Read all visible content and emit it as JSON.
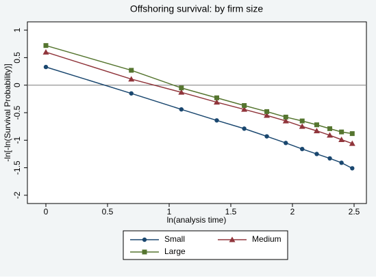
{
  "chart_data": {
    "type": "line",
    "title": "Offshoring survival: by firm size",
    "x_label": "ln(analysis time)",
    "y_label": "-ln[-ln(Survival Probability)]",
    "x": [
      0,
      0.693,
      1.099,
      1.386,
      1.609,
      1.792,
      1.946,
      2.079,
      2.197,
      2.303,
      2.398,
      2.485
    ],
    "series": [
      {
        "name": "Small",
        "color": "#1a476f",
        "marker": "circle",
        "values": [
          0.33,
          -0.15,
          -0.44,
          -0.64,
          -0.79,
          -0.93,
          -1.05,
          -1.16,
          -1.25,
          -1.33,
          -1.41,
          -1.51
        ]
      },
      {
        "name": "Medium",
        "color": "#90353b",
        "marker": "triangle",
        "values": [
          0.6,
          0.11,
          -0.13,
          -0.31,
          -0.44,
          -0.55,
          -0.65,
          -0.75,
          -0.83,
          -0.91,
          -0.99,
          -1.06
        ]
      },
      {
        "name": "Large",
        "color": "#55752f",
        "marker": "square",
        "values": [
          0.72,
          0.27,
          -0.05,
          -0.23,
          -0.37,
          -0.48,
          -0.58,
          -0.65,
          -0.72,
          -0.79,
          -0.85,
          -0.88
        ]
      }
    ],
    "xlim": [
      -0.15,
      2.6
    ],
    "ylim": [
      -2.15,
      1.15
    ],
    "xticks": [
      0,
      0.5,
      1,
      1.5,
      2,
      2.5
    ],
    "yticks": [
      -2,
      -1.5,
      -1,
      -0.5,
      0,
      0.5,
      1
    ],
    "reference_line": 0,
    "legend": "bottom"
  }
}
